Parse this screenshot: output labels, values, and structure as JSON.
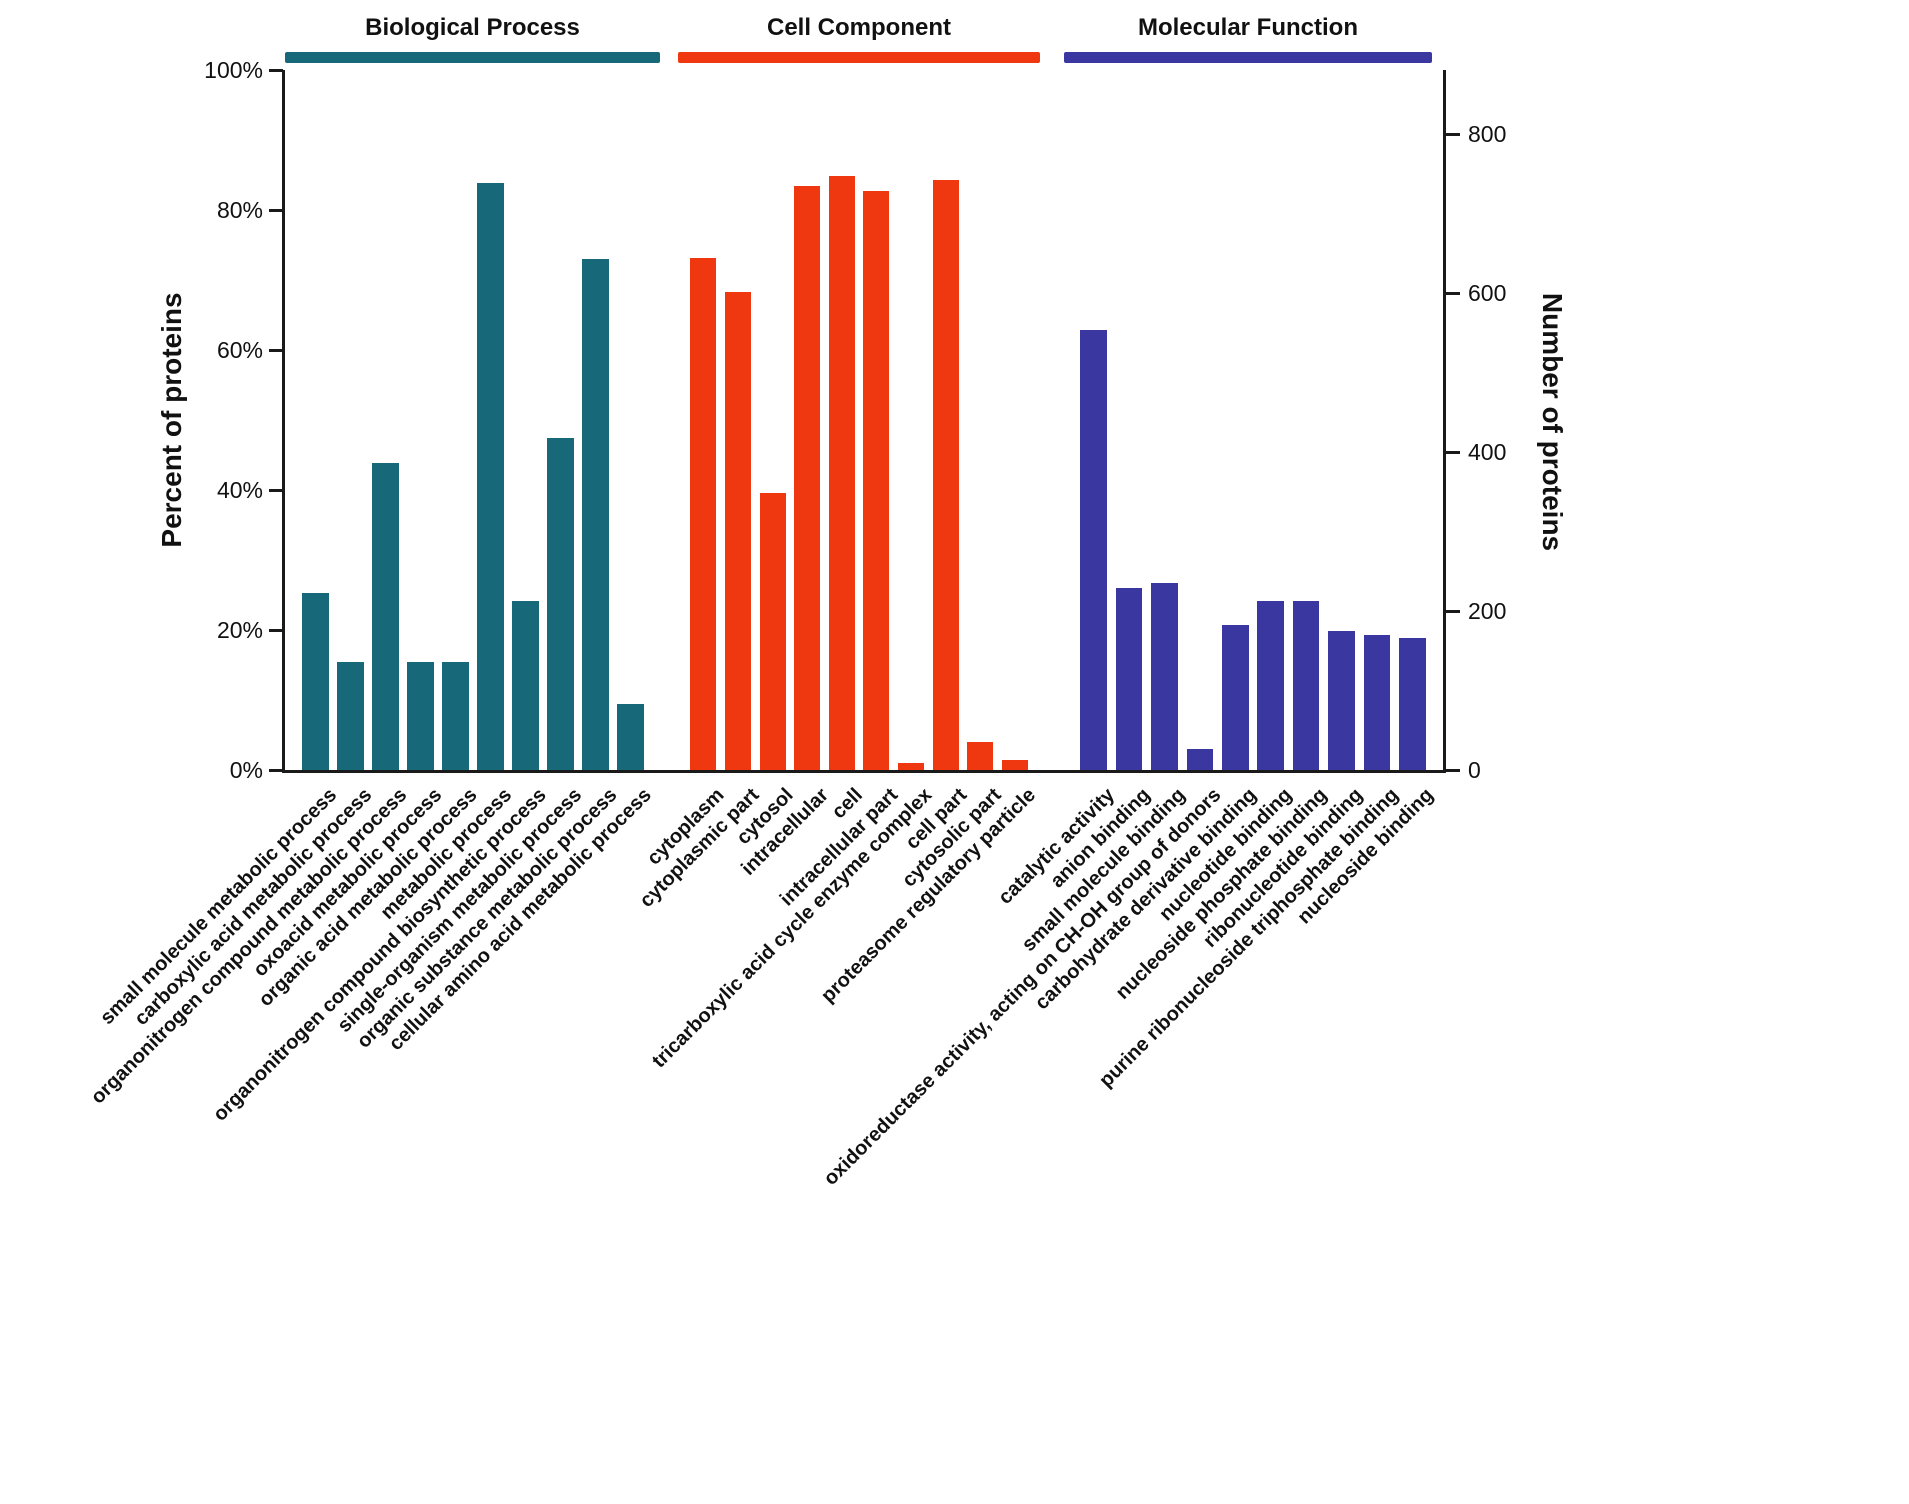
{
  "figure": {
    "ylabel_left": "Percent of proteins",
    "ylabel_right": "Number of proteins"
  },
  "chart_data": {
    "type": "bar",
    "title": "",
    "ylabel_left": "Percent of proteins",
    "ylabel_right": "Number of proteins",
    "grid": false,
    "legend_position": "top",
    "left_axis": {
      "unit": "%",
      "ticks": [
        0,
        20,
        40,
        60,
        80,
        100
      ],
      "range": [
        0,
        100
      ]
    },
    "right_axis": {
      "ticks": [
        0,
        200,
        400,
        600,
        800
      ],
      "range": [
        0,
        880
      ]
    },
    "groups": [
      {
        "name": "Biological Process",
        "color": "#17697a",
        "categories": [
          "small molecule metabolic process",
          "carboxylic acid metabolic process",
          "organonitrogen compound metabolic process",
          "oxoacid metabolic process",
          "organic acid metabolic process",
          "metabolic process",
          "organonitrogen compound biosynthetic process",
          "single-organism metabolic process",
          "organic substance metabolic process",
          "cellular amino acid metabolic process"
        ],
        "values_percent": [
          25.3,
          15.5,
          43.9,
          15.5,
          15.5,
          83.9,
          24.1,
          47.5,
          73.0,
          9.5
        ]
      },
      {
        "name": "Cell Component",
        "color": "#f03810",
        "categories": [
          "cytoplasm",
          "cytoplasmic part",
          "cytosol",
          "intracellular",
          "cell",
          "intracellular part",
          "tricarboxylic acid cycle enzyme complex",
          "cell part",
          "cytosolic part",
          "proteasome regulatory particle"
        ],
        "values_percent": [
          73.1,
          68.3,
          39.6,
          83.5,
          84.8,
          82.7,
          1.0,
          84.3,
          4.0,
          1.4
        ]
      },
      {
        "name": "Molecular Function",
        "color": "#3a38a0",
        "categories": [
          "catalytic activity",
          "anion binding",
          "small molecule binding",
          "oxidoreductase activity, acting on CH-OH group of donors",
          "carbohydrate derivative binding",
          "nucleotide binding",
          "nucleoside phosphate binding",
          "ribonucleotide binding",
          "purine ribonucleoside triphosphate binding",
          "nucleoside binding"
        ],
        "values_percent": [
          62.9,
          26.0,
          26.7,
          3.0,
          20.7,
          24.1,
          24.1,
          19.9,
          19.3,
          18.9
        ]
      }
    ]
  }
}
